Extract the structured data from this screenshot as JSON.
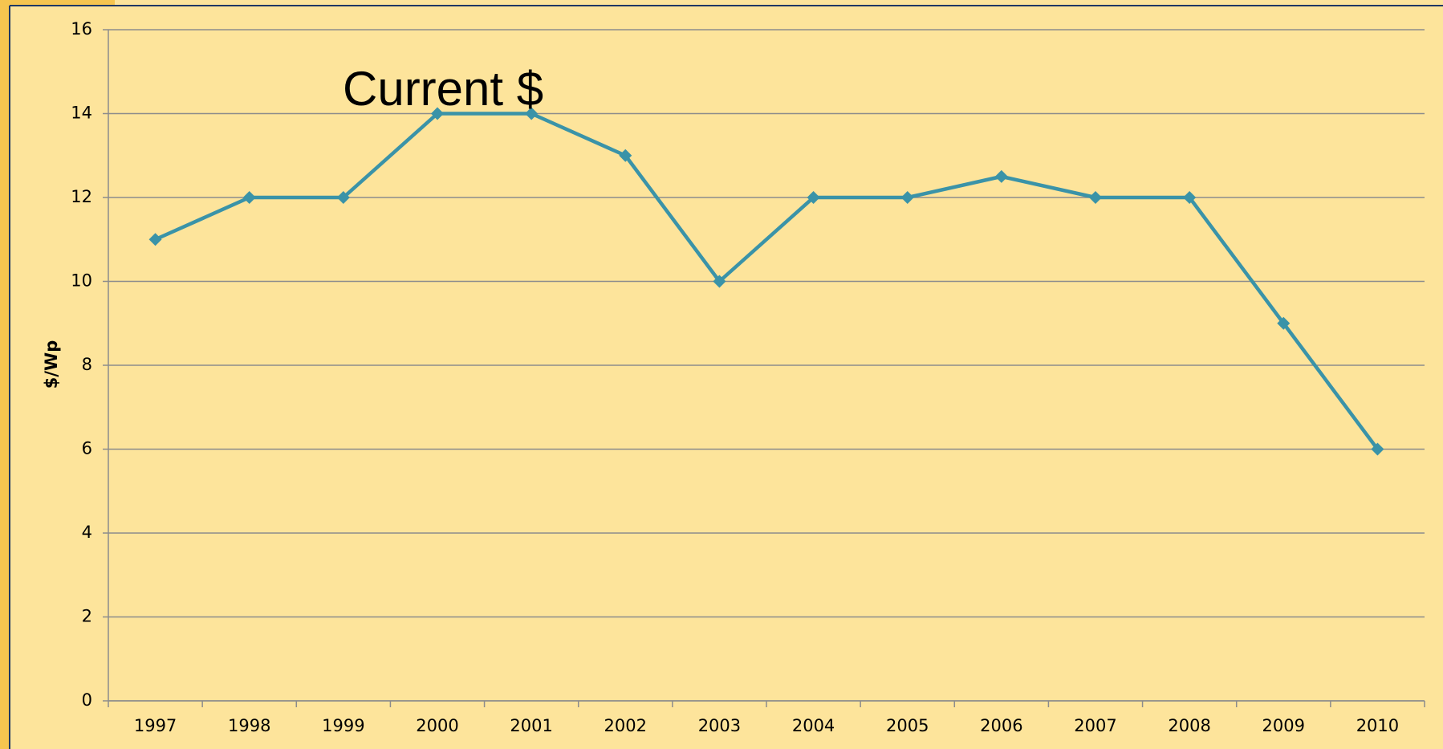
{
  "chart_data": {
    "type": "line",
    "title": "Current $",
    "ylabel": "$/Wp",
    "categories": [
      "1997",
      "1998",
      "1999",
      "2000",
      "2001",
      "2002",
      "2003",
      "2004",
      "2005",
      "2006",
      "2007",
      "2008",
      "2009",
      "2010"
    ],
    "series": [
      {
        "name": "Current $",
        "color": "#3a93a8",
        "values": [
          11,
          12,
          12,
          14,
          14,
          13,
          10,
          12,
          12,
          12.5,
          12,
          12,
          9,
          6
        ]
      }
    ],
    "ylim": [
      0,
      16
    ],
    "yticks": [
      0,
      2,
      4,
      6,
      8,
      10,
      12,
      14,
      16
    ],
    "grid": true
  }
}
